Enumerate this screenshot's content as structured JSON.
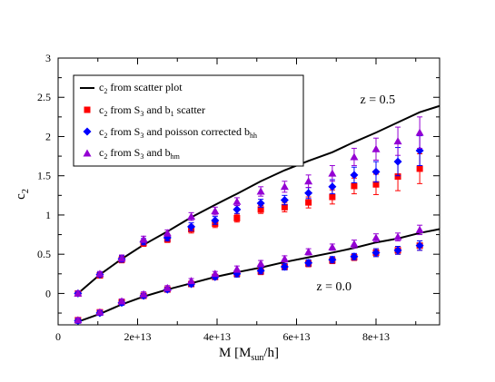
{
  "chart_data": {
    "type": "scatter",
    "title": "",
    "xlabel": "M [M",
    "xlabel_sub": "sun",
    "xlabel_tail": "/h]",
    "ylabel": "c",
    "ylabel_sub": "2",
    "xlim": [
      0,
      96000000000000.0
    ],
    "ylim": [
      -0.4,
      3
    ],
    "x_ticks": [
      0,
      20000000000000.0,
      40000000000000.0,
      60000000000000.0,
      80000000000000.0
    ],
    "x_tick_labels": [
      "0",
      "2e+13",
      "4e+13",
      "6e+13",
      "8e+13"
    ],
    "y_ticks": [
      0,
      0.5,
      1,
      1.5,
      2,
      2.5,
      3
    ],
    "y_tick_labels": [
      "0",
      "0.5",
      "1",
      "1.5",
      "2",
      "2.5",
      "3"
    ],
    "grid": false,
    "legend_position": "top-left",
    "legend": [
      {
        "pre": "c",
        "sub1": "2",
        "mid": " from scatter plot",
        "sub2": "",
        "post": "",
        "marker": "line",
        "color": "#000000"
      },
      {
        "pre": "c",
        "sub1": "2",
        "mid": " from S",
        "sub2": "3",
        "post": " and b",
        "sub3": "1",
        "tail": " scatter",
        "marker": "square",
        "color": "#ff0000"
      },
      {
        "pre": "c",
        "sub1": "2",
        "mid": " from S",
        "sub2": "3",
        "post": " and poisson corrected b",
        "sub3": "hh",
        "tail": "",
        "marker": "diamond",
        "color": "#0000ff"
      },
      {
        "pre": "c",
        "sub1": "2",
        "mid": " from S",
        "sub2": "3",
        "post": " and b",
        "sub3": "hm",
        "tail": "",
        "marker": "triangle",
        "color": "#9400d3"
      }
    ],
    "annotations": [
      {
        "text": "z = 0.5",
        "x": 76000000000000.0,
        "y": 2.42
      },
      {
        "text": "z = 0.0",
        "x": 65000000000000.0,
        "y": 0.04
      }
    ],
    "series": [
      {
        "marker": "line",
        "color": "#000000",
        "x": [
          5000000000000.0,
          10500000000000.0,
          16000000000000.0,
          21500000000000.0,
          27500000000000.0,
          33500000000000.0,
          39500000000000.0,
          45000000000000.0,
          51000000000000.0,
          57000000000000.0,
          63000000000000.0,
          69000000000000.0,
          74500000000000.0,
          80000000000000.0,
          85500000000000.0,
          91000000000000.0,
          96000000000000.0
        ],
        "y_sets": [
          [
            0.0,
            0.24,
            0.44,
            0.62,
            0.79,
            0.97,
            1.13,
            1.27,
            1.43,
            1.57,
            1.69,
            1.8,
            1.93,
            2.05,
            2.18,
            2.31,
            2.39
          ],
          [
            -0.36,
            -0.26,
            -0.14,
            -0.04,
            0.05,
            0.13,
            0.21,
            0.27,
            0.33,
            0.4,
            0.46,
            0.52,
            0.58,
            0.65,
            0.7,
            0.77,
            0.82
          ]
        ]
      },
      {
        "name": "bias1",
        "marker": "square",
        "color": "#ff0000",
        "x": [
          5000000000000.0,
          10500000000000.0,
          16000000000000.0,
          21500000000000.0,
          27500000000000.0,
          33500000000000.0,
          39500000000000.0,
          45000000000000.0,
          51000000000000.0,
          57000000000000.0,
          63000000000000.0,
          69000000000000.0,
          74500000000000.0,
          80000000000000.0,
          85500000000000.0,
          91000000000000.0
        ],
        "y_sets": [
          [
            0.0,
            0.23,
            0.43,
            0.64,
            0.69,
            0.82,
            0.89,
            0.96,
            1.07,
            1.1,
            1.16,
            1.23,
            1.37,
            1.39,
            1.49,
            1.59
          ],
          [
            -0.34,
            -0.24,
            -0.11,
            -0.03,
            0.05,
            0.12,
            0.21,
            0.25,
            0.28,
            0.34,
            0.38,
            0.42,
            0.46,
            0.52,
            0.55,
            0.61
          ]
        ],
        "err_sets": [
          [
            0.03,
            0.03,
            0.04,
            0.04,
            0.04,
            0.05,
            0.05,
            0.05,
            0.05,
            0.06,
            0.07,
            0.09,
            0.1,
            0.13,
            0.18,
            0.19
          ],
          [
            0.03,
            0.03,
            0.03,
            0.03,
            0.03,
            0.03,
            0.03,
            0.04,
            0.04,
            0.04,
            0.04,
            0.04,
            0.04,
            0.05,
            0.05,
            0.06
          ]
        ]
      },
      {
        "name": "poisson",
        "marker": "diamond",
        "color": "#0000ff",
        "x": [
          5000000000000.0,
          10500000000000.0,
          16000000000000.0,
          21500000000000.0,
          27500000000000.0,
          33500000000000.0,
          39500000000000.0,
          45000000000000.0,
          51000000000000.0,
          57000000000000.0,
          63000000000000.0,
          69000000000000.0,
          74500000000000.0,
          80000000000000.0,
          85500000000000.0,
          91000000000000.0
        ],
        "y_sets": [
          [
            0.0,
            0.24,
            0.44,
            0.66,
            0.71,
            0.85,
            0.93,
            1.07,
            1.15,
            1.19,
            1.28,
            1.36,
            1.51,
            1.55,
            1.68,
            1.82
          ],
          [
            -0.35,
            -0.25,
            -0.12,
            -0.03,
            0.05,
            0.12,
            0.21,
            0.25,
            0.29,
            0.34,
            0.39,
            0.43,
            0.47,
            0.52,
            0.55,
            0.61
          ]
        ],
        "err_sets": [
          [
            0.03,
            0.03,
            0.04,
            0.04,
            0.04,
            0.05,
            0.05,
            0.05,
            0.05,
            0.06,
            0.07,
            0.09,
            0.1,
            0.13,
            0.18,
            0.19
          ],
          [
            0.03,
            0.03,
            0.03,
            0.03,
            0.03,
            0.03,
            0.03,
            0.04,
            0.04,
            0.04,
            0.04,
            0.04,
            0.04,
            0.05,
            0.05,
            0.06
          ]
        ]
      },
      {
        "name": "bhm",
        "marker": "triangle",
        "color": "#9400d3",
        "x": [
          5000000000000.0,
          10500000000000.0,
          16000000000000.0,
          21500000000000.0,
          27500000000000.0,
          33500000000000.0,
          39500000000000.0,
          45000000000000.0,
          51000000000000.0,
          57000000000000.0,
          63000000000000.0,
          69000000000000.0,
          74500000000000.0,
          80000000000000.0,
          85500000000000.0,
          91000000000000.0
        ],
        "y_sets": [
          [
            0.0,
            0.25,
            0.45,
            0.69,
            0.77,
            0.98,
            1.05,
            1.17,
            1.3,
            1.36,
            1.43,
            1.53,
            1.74,
            1.84,
            1.94,
            2.05
          ],
          [
            -0.34,
            -0.24,
            -0.1,
            -0.01,
            0.07,
            0.16,
            0.25,
            0.31,
            0.38,
            0.44,
            0.53,
            0.59,
            0.63,
            0.71,
            0.72,
            0.81
          ]
        ],
        "err_sets": [
          [
            0.03,
            0.03,
            0.04,
            0.04,
            0.04,
            0.05,
            0.05,
            0.05,
            0.06,
            0.07,
            0.08,
            0.1,
            0.11,
            0.14,
            0.18,
            0.2
          ],
          [
            0.03,
            0.03,
            0.03,
            0.03,
            0.03,
            0.03,
            0.03,
            0.04,
            0.04,
            0.04,
            0.04,
            0.04,
            0.05,
            0.05,
            0.05,
            0.06
          ]
        ]
      }
    ]
  }
}
